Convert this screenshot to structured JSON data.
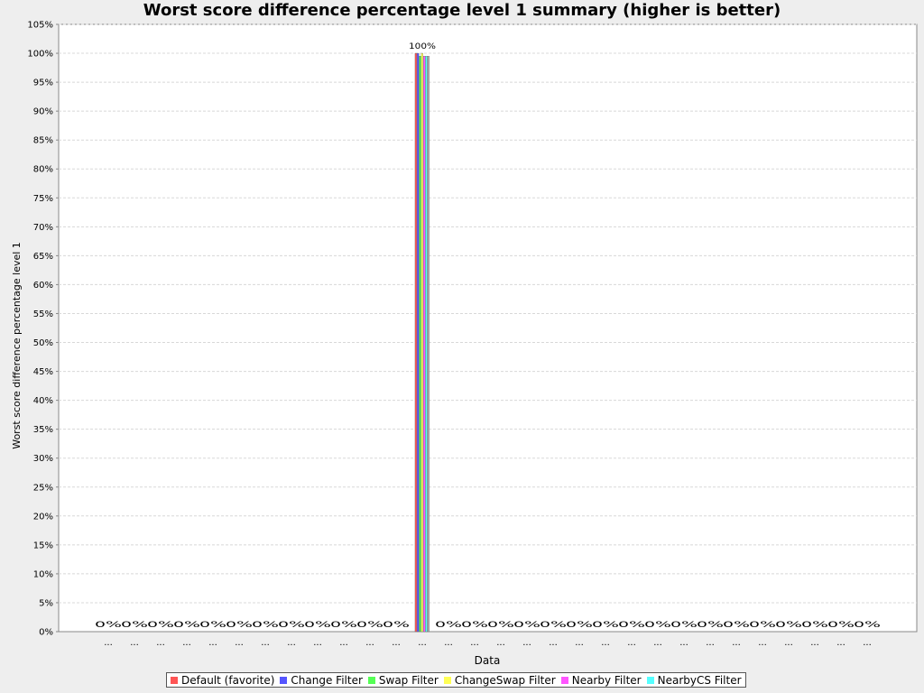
{
  "chart_data": {
    "type": "bar",
    "title": "Worst score difference percentage level 1 summary (higher is better)",
    "xlabel": "Data",
    "ylabel": "Worst score difference percentage level 1",
    "ylim": [
      0,
      105
    ],
    "y_ticks": [
      "0%",
      "5%",
      "10%",
      "15%",
      "20%",
      "25%",
      "30%",
      "35%",
      "40%",
      "45%",
      "50%",
      "55%",
      "60%",
      "65%",
      "70%",
      "75%",
      "80%",
      "85%",
      "90%",
      "95%",
      "100%",
      "105%"
    ],
    "grid": true,
    "legend_position": "bottom",
    "categories": [
      "...",
      "...",
      "...",
      "...",
      "...",
      "...",
      "...",
      "...",
      "...",
      "...",
      "...",
      "...",
      "...",
      "...",
      "...",
      "...",
      "...",
      "...",
      "...",
      "...",
      "...",
      "...",
      "...",
      "...",
      "...",
      "...",
      "...",
      "...",
      "...",
      "..."
    ],
    "series": [
      {
        "name": "Default (favorite)",
        "color": "#ff5555",
        "values": [
          0,
          0,
          0,
          0,
          0,
          0,
          0,
          0,
          0,
          0,
          0,
          0,
          100,
          0,
          0,
          0,
          0,
          0,
          0,
          0,
          0,
          0,
          0,
          0,
          0,
          0,
          0,
          0,
          0,
          0
        ]
      },
      {
        "name": "Change Filter",
        "color": "#5555ff",
        "values": [
          0,
          0,
          0,
          0,
          0,
          0,
          0,
          0,
          0,
          0,
          0,
          0,
          100,
          0,
          0,
          0,
          0,
          0,
          0,
          0,
          0,
          0,
          0,
          0,
          0,
          0,
          0,
          0,
          0,
          0
        ]
      },
      {
        "name": "Swap Filter",
        "color": "#55ff55",
        "values": [
          0,
          0,
          0,
          0,
          0,
          0,
          0,
          0,
          0,
          0,
          0,
          0,
          99.5,
          0,
          0,
          0,
          0,
          0,
          0,
          0,
          0,
          0,
          0,
          0,
          0,
          0,
          0,
          0,
          0,
          0
        ]
      },
      {
        "name": "ChangeSwap Filter",
        "color": "#ffff55",
        "values": [
          0,
          0,
          0,
          0,
          0,
          0,
          0,
          0,
          0,
          0,
          0,
          0,
          100,
          0,
          0,
          0,
          0,
          0,
          0,
          0,
          0,
          0,
          0,
          0,
          0,
          0,
          0,
          0,
          0,
          0
        ]
      },
      {
        "name": "Nearby Filter",
        "color": "#ff55ff",
        "values": [
          0,
          0,
          0,
          0,
          0,
          0,
          0,
          0,
          0,
          0,
          0,
          0,
          99.5,
          0,
          0,
          0,
          0,
          0,
          0,
          0,
          0,
          0,
          0,
          0,
          0,
          0,
          0,
          0,
          0,
          0
        ]
      },
      {
        "name": "NearbyCS Filter",
        "color": "#55ffff",
        "values": [
          0,
          0,
          0,
          0,
          0,
          0,
          0,
          0,
          0,
          0,
          0,
          0,
          99.5,
          0,
          0,
          0,
          0,
          0,
          0,
          0,
          0,
          0,
          0,
          0,
          0,
          0,
          0,
          0,
          0,
          0
        ]
      },
      {
        "name": "",
        "color": "#aaaaaa",
        "values": [
          0,
          0,
          0,
          0,
          0,
          0,
          0,
          0,
          0,
          0,
          0,
          0,
          99.5,
          0,
          0,
          0,
          0,
          0,
          0,
          0,
          0,
          0,
          0,
          0,
          0,
          0,
          0,
          0,
          0,
          0
        ]
      }
    ],
    "bar_labels": [
      "0%",
      "0%",
      "0%",
      "0%",
      "0%",
      "0%",
      "0%",
      "0%",
      "0%",
      "0%",
      "0%",
      "0%",
      "100%",
      "0%",
      "0%",
      "0%",
      "0%",
      "0%",
      "0%",
      "0%",
      "0%",
      "0%",
      "0%",
      "0%",
      "0%",
      "0%",
      "0%",
      "0%",
      "0%",
      "0%"
    ]
  }
}
